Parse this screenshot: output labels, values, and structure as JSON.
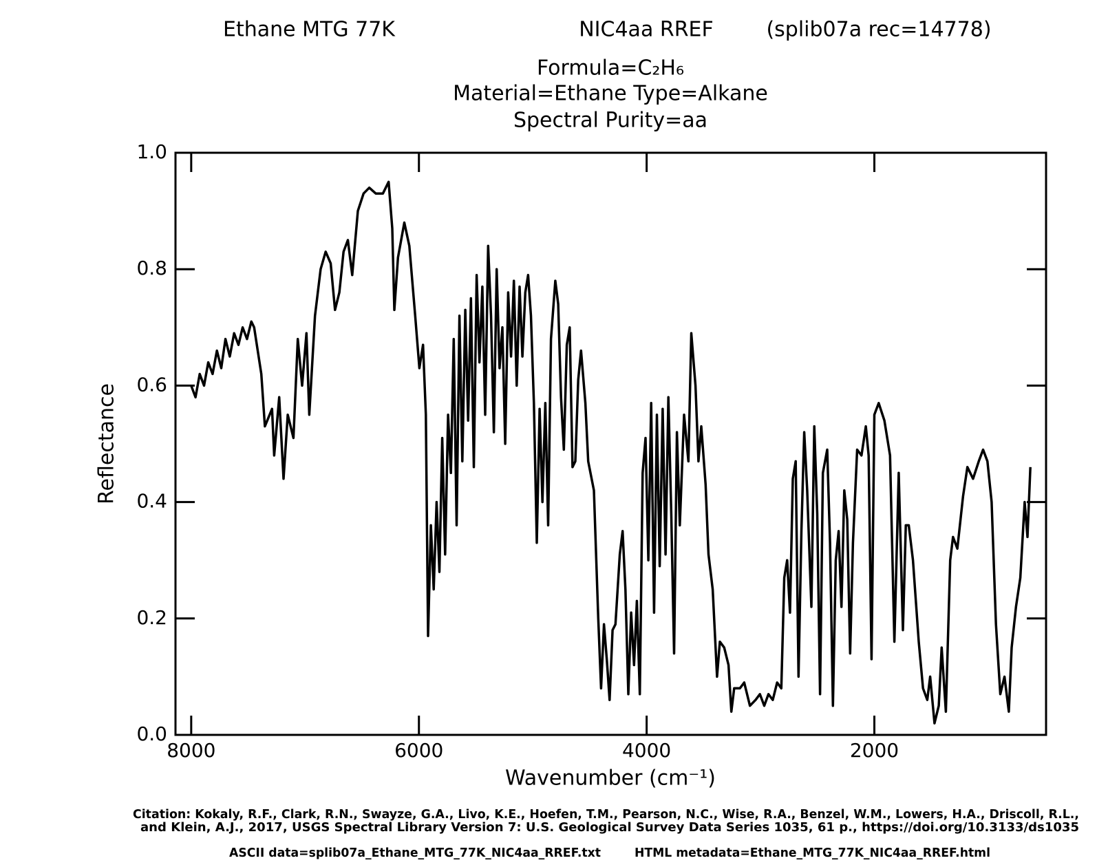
{
  "chart_data": {
    "type": "line",
    "title_left": "Ethane MTG 77K",
    "title_mid": "NIC4aa RREF",
    "title_right": "(splib07a rec=14778)",
    "formula": "Formula=C₂H₆",
    "material": "Material=Ethane  Type=Alkane",
    "purity": "Spectral Purity=aa",
    "xlabel": "Wavenumber (cm⁻¹)",
    "ylabel": "Reflectance",
    "citation_1": "Citation: Kokaly, R.F., Clark, R.N., Swayze, G.A., Livo, K.E., Hoefen, T.M., Pearson, N.C., Wise, R.A., Benzel, W.M., Lowers, H.A., Driscoll, R.L.,",
    "citation_2": "and Klein, A.J., 2017, USGS Spectral Library Version 7: U.S. Geological Survey Data Series 1035, 61 p., https://doi.org/10.3133/ds1035",
    "ascii": "ASCII data=splib07a_Ethane_MTG_77K_NIC4aa_RREF.txt",
    "html": "HTML metadata=Ethane_MTG_77K_NIC4aa_RREF.html",
    "color": "#000000",
    "xlim": [
      8138,
      492
    ],
    "ylim": [
      0,
      1
    ],
    "xticks": [
      8000,
      6000,
      4000,
      2000
    ],
    "yticks": [
      {
        "value": 0,
        "label": "0.0"
      },
      0.2,
      0.4,
      0.6,
      0.8,
      {
        "value": 1,
        "label": "1.0"
      }
    ],
    "x": [
      8000,
      7962,
      7925,
      7887,
      7850,
      7812,
      7774,
      7736,
      7699,
      7661,
      7623,
      7585,
      7548,
      7510,
      7472,
      7447,
      7384,
      7353,
      7290,
      7271,
      7227,
      7189,
      7152,
      7102,
      7064,
      7026,
      6988,
      6963,
      6913,
      6863,
      6819,
      6775,
      6737,
      6699,
      6662,
      6624,
      6586,
      6536,
      6486,
      6436,
      6379,
      6316,
      6266,
      6234,
      6216,
      6184,
      6128,
      6084,
      6033,
      5996,
      5964,
      5939,
      5920,
      5895,
      5870,
      5845,
      5820,
      5795,
      5770,
      5744,
      5719,
      5694,
      5669,
      5644,
      5619,
      5593,
      5568,
      5543,
      5518,
      5493,
      5468,
      5443,
      5418,
      5392,
      5367,
      5342,
      5317,
      5292,
      5267,
      5242,
      5216,
      5191,
      5166,
      5141,
      5116,
      5091,
      5066,
      5041,
      5016,
      4990,
      4965,
      4940,
      4915,
      4890,
      4865,
      4840,
      4802,
      4777,
      4752,
      4727,
      4701,
      4676,
      4651,
      4626,
      4601,
      4576,
      4538,
      4513,
      4463,
      4425,
      4400,
      4375,
      4350,
      4325,
      4299,
      4274,
      4236,
      4211,
      4186,
      4161,
      4136,
      4111,
      4086,
      4060,
      4035,
      4010,
      3985,
      3960,
      3935,
      3910,
      3885,
      3859,
      3834,
      3809,
      3784,
      3759,
      3734,
      3709,
      3671,
      3633,
      3608,
      3571,
      3545,
      3520,
      3482,
      3457,
      3420,
      3382,
      3357,
      3319,
      3281,
      3256,
      3231,
      3181,
      3143,
      3093,
      3043,
      3005,
      2967,
      2930,
      2892,
      2854,
      2817,
      2791,
      2766,
      2741,
      2716,
      2691,
      2666,
      2641,
      2616,
      2590,
      2553,
      2528,
      2502,
      2477,
      2452,
      2414,
      2389,
      2364,
      2339,
      2314,
      2289,
      2264,
      2238,
      2213,
      2188,
      2151,
      2113,
      2075,
      2050,
      2025,
      2000,
      1962,
      1912,
      1862,
      1824,
      1786,
      1749,
      1724,
      1698,
      1661,
      1610,
      1573,
      1535,
      1510,
      1472,
      1434,
      1409,
      1372,
      1334,
      1309,
      1271,
      1221,
      1183,
      1133,
      1083,
      1045,
      1007,
      970,
      932,
      894,
      857,
      819,
      794,
      756,
      718,
      680,
      655,
      630
    ],
    "values": [
      0.6,
      0.58,
      0.62,
      0.6,
      0.64,
      0.62,
      0.66,
      0.63,
      0.68,
      0.65,
      0.69,
      0.67,
      0.7,
      0.68,
      0.71,
      0.7,
      0.62,
      0.53,
      0.56,
      0.48,
      0.58,
      0.44,
      0.55,
      0.51,
      0.68,
      0.6,
      0.69,
      0.55,
      0.72,
      0.8,
      0.83,
      0.81,
      0.73,
      0.76,
      0.83,
      0.85,
      0.79,
      0.9,
      0.93,
      0.94,
      0.93,
      0.93,
      0.95,
      0.87,
      0.73,
      0.82,
      0.88,
      0.84,
      0.72,
      0.63,
      0.67,
      0.55,
      0.17,
      0.36,
      0.25,
      0.4,
      0.28,
      0.51,
      0.31,
      0.55,
      0.45,
      0.68,
      0.36,
      0.72,
      0.47,
      0.73,
      0.54,
      0.75,
      0.46,
      0.79,
      0.64,
      0.77,
      0.55,
      0.84,
      0.72,
      0.52,
      0.8,
      0.63,
      0.7,
      0.5,
      0.76,
      0.65,
      0.78,
      0.6,
      0.77,
      0.65,
      0.76,
      0.79,
      0.72,
      0.57,
      0.33,
      0.56,
      0.4,
      0.57,
      0.36,
      0.68,
      0.78,
      0.74,
      0.58,
      0.49,
      0.67,
      0.7,
      0.46,
      0.47,
      0.61,
      0.66,
      0.57,
      0.47,
      0.42,
      0.2,
      0.08,
      0.19,
      0.13,
      0.06,
      0.18,
      0.19,
      0.31,
      0.35,
      0.25,
      0.07,
      0.21,
      0.12,
      0.23,
      0.07,
      0.45,
      0.51,
      0.3,
      0.57,
      0.21,
      0.55,
      0.29,
      0.56,
      0.31,
      0.58,
      0.38,
      0.14,
      0.52,
      0.36,
      0.55,
      0.47,
      0.69,
      0.6,
      0.47,
      0.53,
      0.43,
      0.31,
      0.25,
      0.1,
      0.16,
      0.15,
      0.12,
      0.04,
      0.08,
      0.08,
      0.09,
      0.05,
      0.06,
      0.07,
      0.05,
      0.07,
      0.06,
      0.09,
      0.08,
      0.27,
      0.3,
      0.21,
      0.44,
      0.47,
      0.1,
      0.35,
      0.52,
      0.42,
      0.22,
      0.53,
      0.38,
      0.07,
      0.45,
      0.49,
      0.33,
      0.05,
      0.3,
      0.35,
      0.22,
      0.42,
      0.37,
      0.14,
      0.33,
      0.49,
      0.48,
      0.53,
      0.48,
      0.13,
      0.55,
      0.57,
      0.54,
      0.48,
      0.16,
      0.45,
      0.18,
      0.36,
      0.36,
      0.3,
      0.16,
      0.08,
      0.06,
      0.1,
      0.02,
      0.05,
      0.15,
      0.04,
      0.3,
      0.34,
      0.32,
      0.41,
      0.46,
      0.44,
      0.47,
      0.49,
      0.47,
      0.4,
      0.19,
      0.07,
      0.1,
      0.04,
      0.15,
      0.22,
      0.27,
      0.4,
      0.34,
      0.46
    ]
  }
}
